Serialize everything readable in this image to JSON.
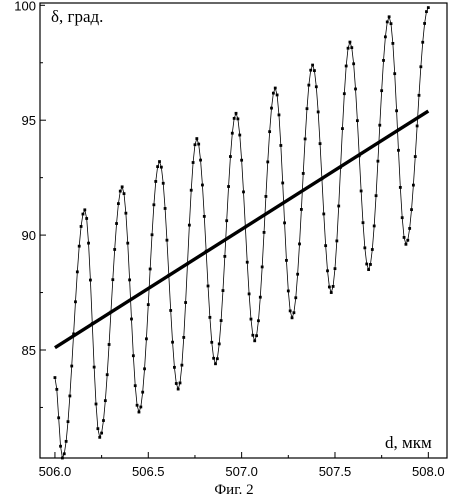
{
  "chart_data": {
    "type": "line",
    "ylabel": "δ, град.",
    "xlabel": "d, мкм",
    "caption": "Фиг. 2",
    "xlim": [
      505.92,
      508.1
    ],
    "ylim": [
      80.3,
      100.1
    ],
    "x_ticks": [
      506.0,
      506.5,
      507.0,
      507.5,
      508.0
    ],
    "x_tick_labels": [
      "506.0",
      "506.5",
      "507.0",
      "507.5",
      "508.0"
    ],
    "y_ticks": [
      85,
      90,
      95,
      100
    ],
    "y_tick_labels": [
      "85",
      "90",
      "95",
      "100"
    ],
    "grid": false,
    "series": [
      {
        "style": "thin line with square markers",
        "x_start": 506.0,
        "x_end": 508.0,
        "x_step": 0.01,
        "peaks": [
          [
            506.16,
            91.1
          ],
          [
            506.36,
            92.1
          ],
          [
            506.56,
            93.2
          ],
          [
            506.76,
            94.2
          ],
          [
            506.97,
            95.3
          ],
          [
            507.18,
            96.4
          ],
          [
            507.38,
            97.4
          ],
          [
            507.58,
            98.4
          ],
          [
            507.79,
            99.5
          ],
          [
            508.0,
            99.9
          ]
        ],
        "troughs": [
          [
            506.0,
            83.8
          ],
          [
            506.04,
            80.3
          ],
          [
            506.24,
            81.2
          ],
          [
            506.45,
            82.3
          ],
          [
            506.66,
            83.3
          ],
          [
            506.86,
            84.4
          ],
          [
            507.07,
            85.4
          ],
          [
            507.27,
            86.4
          ],
          [
            507.48,
            87.5
          ],
          [
            507.68,
            88.5
          ],
          [
            507.88,
            89.6
          ]
        ]
      },
      {
        "style": "thick straight line",
        "x": [
          506.0,
          508.0
        ],
        "y": [
          85.1,
          95.4
        ]
      }
    ]
  }
}
